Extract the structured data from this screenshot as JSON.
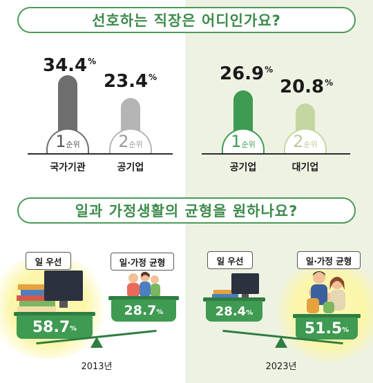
{
  "q1": {
    "title": "선호하는 직장은 어디인가요?",
    "left": [
      {
        "value_text": "34.4",
        "unit": "%",
        "rank_num": "1",
        "rank_suffix": "순위",
        "category": "국가기관"
      },
      {
        "value_text": "23.4",
        "unit": "%",
        "rank_num": "2",
        "rank_suffix": "순위",
        "category": "공기업"
      }
    ],
    "right": [
      {
        "value_text": "26.9",
        "unit": "%",
        "rank_num": "1",
        "rank_suffix": "순위",
        "category": "공기업"
      },
      {
        "value_text": "20.8",
        "unit": "%",
        "rank_num": "2",
        "rank_suffix": "순위",
        "category": "대기업"
      }
    ]
  },
  "q2": {
    "title": "일과 가정생활의 균형을 원하나요?",
    "left": {
      "year": "2013년",
      "work_label": "일 우선",
      "balance_label": "일·가정 균형",
      "work_value": "58.7",
      "balance_value": "28.7",
      "unit": "%"
    },
    "right": {
      "year": "2023년",
      "work_label": "일 우선",
      "balance_label": "일·가정 균형",
      "work_value": "28.4",
      "balance_value": "51.5",
      "unit": "%"
    }
  },
  "colors": {
    "green_dark": "#3f9a52",
    "green_light": "#c4d7a2",
    "gray_dark": "#6e6e6e",
    "gray_light": "#b4b4b4",
    "panel_bg": "#eef2e2"
  },
  "chart_data": [
    {
      "type": "bar",
      "title": "선호하는 직장은 어디인가요?",
      "categories": [
        "국가기관",
        "공기업"
      ],
      "values": [
        34.4,
        23.4
      ],
      "unit": "%",
      "ranks": [
        "1순위",
        "2순위"
      ]
    },
    {
      "type": "bar",
      "title": "선호하는 직장은 어디인가요?",
      "categories": [
        "공기업",
        "대기업"
      ],
      "values": [
        26.9,
        20.8
      ],
      "unit": "%",
      "ranks": [
        "1순위",
        "2순위"
      ]
    },
    {
      "type": "bar",
      "title": "일과 가정생활의 균형을 원하나요?",
      "categories": [
        "일 우선",
        "일·가정 균형"
      ],
      "series": [
        {
          "name": "2013년",
          "values": [
            58.7,
            28.7
          ]
        },
        {
          "name": "2023년",
          "values": [
            28.4,
            51.5
          ]
        }
      ],
      "unit": "%"
    }
  ]
}
